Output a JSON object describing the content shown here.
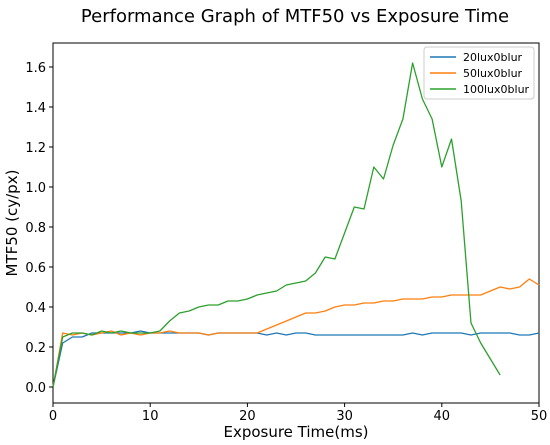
{
  "chart_data": {
    "type": "line",
    "title": "Performance Graph of MTF50 vs Exposure Time",
    "xlabel": "Exposure Time(ms)",
    "ylabel": "MTF50 (cy/px)",
    "xlim": [
      0,
      50
    ],
    "ylim": [
      -0.08,
      1.72
    ],
    "xticks": [
      0,
      10,
      20,
      30,
      40,
      50
    ],
    "xtick_labels": [
      "0",
      "10",
      "20",
      "30",
      "40",
      "50"
    ],
    "yticks": [
      0.0,
      0.2,
      0.4,
      0.6,
      0.8,
      1.0,
      1.2,
      1.4,
      1.6
    ],
    "ytick_labels": [
      "0.0",
      "0.2",
      "0.4",
      "0.6",
      "0.8",
      "1.0",
      "1.2",
      "1.4",
      "1.6"
    ],
    "grid": false,
    "legend_position": "top-right",
    "series": [
      {
        "name": "20lux0blur",
        "color": "#1f77b4",
        "x": [
          0,
          1,
          2,
          3,
          4,
          5,
          6,
          7,
          8,
          9,
          10,
          11,
          12,
          13,
          14,
          15,
          16,
          17,
          18,
          19,
          20,
          21,
          22,
          23,
          24,
          25,
          26,
          27,
          28,
          29,
          30,
          31,
          32,
          33,
          34,
          35,
          36,
          37,
          38,
          39,
          40,
          41,
          42,
          43,
          44,
          45,
          46,
          47,
          48,
          49,
          50
        ],
        "y": [
          0.0,
          0.22,
          0.25,
          0.25,
          0.27,
          0.27,
          0.27,
          0.27,
          0.27,
          0.28,
          0.27,
          0.27,
          0.27,
          0.27,
          0.27,
          0.27,
          0.26,
          0.27,
          0.27,
          0.27,
          0.27,
          0.27,
          0.26,
          0.27,
          0.26,
          0.27,
          0.27,
          0.26,
          0.26,
          0.26,
          0.26,
          0.26,
          0.26,
          0.26,
          0.26,
          0.26,
          0.26,
          0.27,
          0.26,
          0.27,
          0.27,
          0.27,
          0.27,
          0.26,
          0.27,
          0.27,
          0.27,
          0.27,
          0.26,
          0.26,
          0.27
        ]
      },
      {
        "name": "50lux0blur",
        "color": "#ff7f0e",
        "x": [
          0,
          1,
          2,
          3,
          4,
          5,
          6,
          7,
          8,
          9,
          10,
          11,
          12,
          13,
          14,
          15,
          16,
          17,
          18,
          19,
          20,
          21,
          22,
          23,
          24,
          25,
          26,
          27,
          28,
          29,
          30,
          31,
          32,
          33,
          34,
          35,
          36,
          37,
          38,
          39,
          40,
          41,
          42,
          43,
          44,
          45,
          46,
          47,
          48,
          49,
          50
        ],
        "y": [
          0.0,
          0.27,
          0.26,
          0.27,
          0.26,
          0.27,
          0.28,
          0.26,
          0.27,
          0.26,
          0.27,
          0.27,
          0.28,
          0.27,
          0.27,
          0.27,
          0.26,
          0.27,
          0.27,
          0.27,
          0.27,
          0.27,
          0.29,
          0.31,
          0.33,
          0.35,
          0.37,
          0.37,
          0.38,
          0.4,
          0.41,
          0.41,
          0.42,
          0.42,
          0.43,
          0.43,
          0.44,
          0.44,
          0.44,
          0.45,
          0.45,
          0.46,
          0.46,
          0.46,
          0.46,
          0.48,
          0.5,
          0.49,
          0.5,
          0.54,
          0.51
        ]
      },
      {
        "name": "100lux0blur",
        "color": "#2ca02c",
        "x": [
          0,
          1,
          2,
          3,
          4,
          5,
          6,
          7,
          8,
          9,
          10,
          11,
          12,
          13,
          14,
          15,
          16,
          17,
          18,
          19,
          20,
          21,
          22,
          23,
          24,
          25,
          26,
          27,
          28,
          29,
          30,
          31,
          32,
          33,
          34,
          35,
          36,
          37,
          38,
          39,
          40,
          41,
          42,
          43,
          44,
          45,
          46
        ],
        "y": [
          0.0,
          0.25,
          0.27,
          0.27,
          0.26,
          0.28,
          0.27,
          0.28,
          0.27,
          0.27,
          0.27,
          0.28,
          0.33,
          0.37,
          0.38,
          0.4,
          0.41,
          0.41,
          0.43,
          0.43,
          0.44,
          0.46,
          0.47,
          0.48,
          0.51,
          0.52,
          0.53,
          0.57,
          0.65,
          0.64,
          0.77,
          0.9,
          0.89,
          1.1,
          1.04,
          1.21,
          1.34,
          1.62,
          1.44,
          1.34,
          1.1,
          1.24,
          0.93,
          0.32,
          0.22,
          0.14,
          0.06
        ]
      }
    ]
  }
}
